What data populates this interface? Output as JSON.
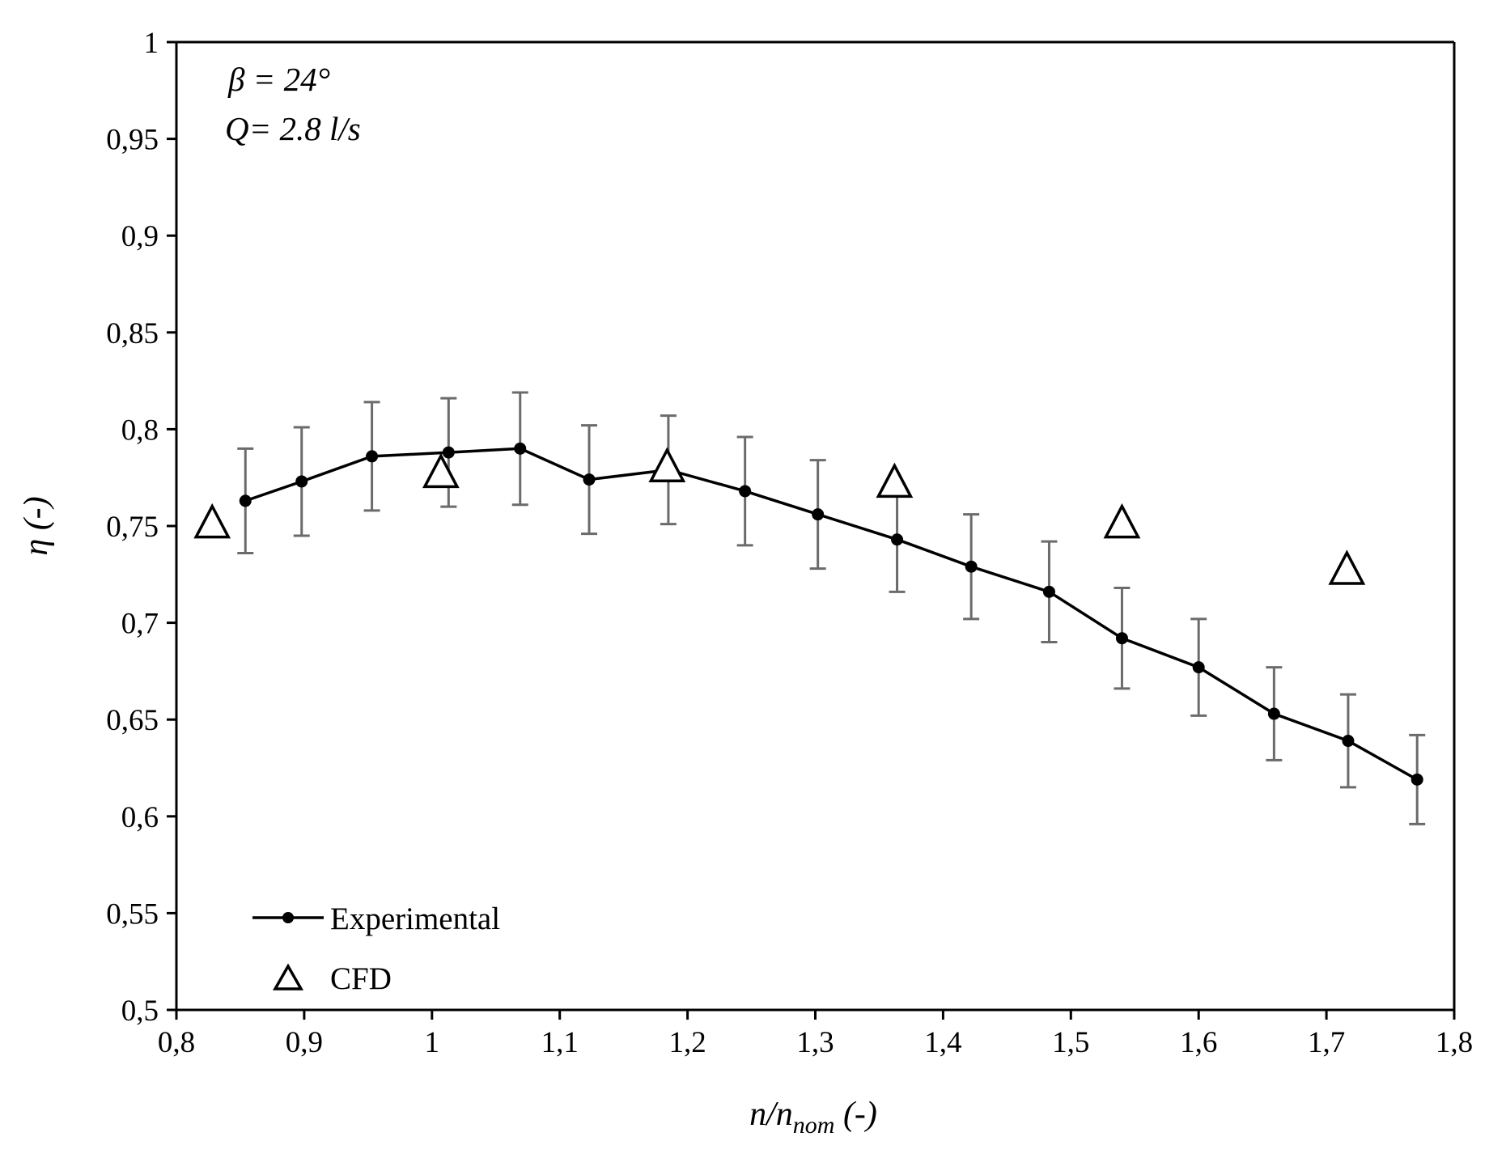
{
  "chart_data": {
    "type": "scatter",
    "title": "",
    "annotations": [
      "β = 24°",
      "Q= 2.8 l/s"
    ],
    "xlabel": {
      "main": "n/n",
      "sub": "nom",
      "suffix": " (-)"
    },
    "ylabel": "η (-)",
    "xlim": [
      0.8,
      1.8
    ],
    "ylim": [
      0.5,
      1.0
    ],
    "x_ticks": [
      0.8,
      0.9,
      1.0,
      1.1,
      1.2,
      1.3,
      1.4,
      1.5,
      1.6,
      1.7,
      1.8
    ],
    "x_tick_labels": [
      "0,8",
      "0,9",
      "1",
      "1,1",
      "1,2",
      "1,3",
      "1,4",
      "1,5",
      "1,6",
      "1,7",
      "1,8"
    ],
    "y_ticks": [
      0.5,
      0.55,
      0.6,
      0.65,
      0.7,
      0.75,
      0.8,
      0.85,
      0.9,
      0.95,
      1.0
    ],
    "y_tick_labels": [
      "0,5",
      "0,55",
      "0,6",
      "0,65",
      "0,7",
      "0,75",
      "0,8",
      "0,85",
      "0,9",
      "0,95",
      "1"
    ],
    "grid": false,
    "legend_position": "bottom-left",
    "series": [
      {
        "name": "Experimental",
        "style": "line-with-dots",
        "color": "#000000",
        "error_bar_color": "#6b6b6b",
        "x": [
          0.854,
          0.898,
          0.953,
          1.013,
          1.069,
          1.123,
          1.185,
          1.245,
          1.302,
          1.364,
          1.422,
          1.483,
          1.54,
          1.6,
          1.659,
          1.717,
          1.771
        ],
        "y": [
          0.763,
          0.773,
          0.786,
          0.788,
          0.79,
          0.774,
          0.779,
          0.768,
          0.756,
          0.743,
          0.729,
          0.716,
          0.692,
          0.677,
          0.653,
          0.639,
          0.619
        ],
        "err": [
          0.027,
          0.028,
          0.028,
          0.028,
          0.029,
          0.028,
          0.028,
          0.028,
          0.028,
          0.027,
          0.027,
          0.026,
          0.026,
          0.025,
          0.024,
          0.024,
          0.023
        ]
      },
      {
        "name": "CFD",
        "style": "hollow-triangle",
        "color": "#000000",
        "x": [
          0.828,
          1.007,
          1.184,
          1.362,
          1.54,
          1.716
        ],
        "y": [
          0.751,
          0.777,
          0.78,
          0.772,
          0.751,
          0.727
        ]
      }
    ]
  }
}
